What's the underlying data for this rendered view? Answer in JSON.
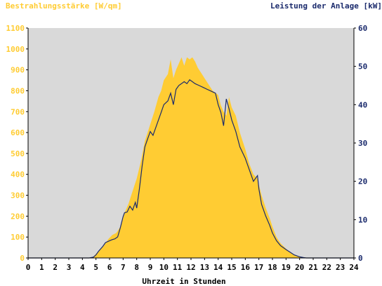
{
  "chart_data": {
    "type": "area",
    "left_axis_title": "Bestrahlungsstärke [W/qm]",
    "right_axis_title": "Leistung der Anlage [kW]",
    "xlabel": "Uhrzeit in Stunden",
    "x_ticks": [
      0,
      1,
      2,
      3,
      4,
      5,
      6,
      7,
      8,
      9,
      10,
      11,
      12,
      13,
      14,
      15,
      16,
      17,
      18,
      19,
      20,
      21,
      22,
      23,
      24
    ],
    "left_ticks": [
      0,
      100,
      200,
      300,
      400,
      500,
      600,
      700,
      800,
      900,
      1000,
      1100
    ],
    "right_ticks": [
      0,
      10,
      20,
      30,
      40,
      50,
      60
    ],
    "xlim": [
      0,
      24
    ],
    "ylim_left": [
      0,
      1100
    ],
    "ylim_right": [
      0,
      60
    ],
    "grid": false,
    "colors": {
      "plot_background": "#d9d9d9",
      "irradiance_fill": "#ffcc33",
      "power_line": "#1a2a6c",
      "left_axis_text": "#ffcc33",
      "right_axis_text": "#1a2a6c",
      "bottom_axis_text": "#000000"
    },
    "series": [
      {
        "axis": "left",
        "style": "area",
        "x": [
          0,
          4.5,
          4.8,
          5.0,
          5.3,
          5.6,
          5.9,
          6.2,
          6.5,
          6.8,
          7.0,
          7.2,
          7.4,
          7.6,
          7.8,
          8.0,
          8.3,
          8.6,
          9.0,
          9.3,
          9.6,
          9.8,
          10.0,
          10.3,
          10.5,
          10.7,
          10.9,
          11.1,
          11.3,
          11.5,
          11.7,
          11.9,
          12.1,
          12.3,
          12.5,
          12.8,
          13.0,
          13.3,
          13.6,
          14.0,
          14.2,
          14.4,
          14.6,
          14.8,
          15.0,
          15.3,
          15.6,
          16.0,
          16.3,
          16.6,
          16.9,
          17.0,
          17.2,
          17.5,
          17.8,
          18.0,
          18.3,
          18.6,
          19.0,
          19.3,
          19.6,
          20.0,
          20.3,
          20.5,
          24
        ],
        "y": [
          0,
          0,
          5,
          20,
          40,
          60,
          90,
          110,
          120,
          150,
          200,
          230,
          260,
          300,
          340,
          380,
          460,
          560,
          640,
          700,
          770,
          800,
          850,
          880,
          950,
          860,
          900,
          930,
          960,
          920,
          960,
          950,
          960,
          940,
          910,
          880,
          860,
          830,
          800,
          780,
          730,
          700,
          680,
          770,
          720,
          680,
          600,
          520,
          450,
          400,
          380,
          350,
          300,
          240,
          190,
          150,
          100,
          70,
          45,
          25,
          15,
          5,
          2,
          0,
          0
        ]
      },
      {
        "axis": "right",
        "style": "line",
        "x": [
          0,
          4.5,
          4.8,
          5.0,
          5.2,
          5.5,
          5.7,
          6.0,
          6.2,
          6.4,
          6.6,
          6.8,
          7.0,
          7.1,
          7.3,
          7.5,
          7.7,
          7.9,
          8.0,
          8.2,
          8.4,
          8.6,
          8.8,
          9.0,
          9.2,
          9.5,
          9.8,
          10.0,
          10.3,
          10.5,
          10.7,
          10.9,
          11.1,
          11.3,
          11.5,
          11.7,
          11.9,
          12.1,
          12.3,
          12.6,
          12.9,
          13.2,
          13.5,
          13.8,
          14.0,
          14.2,
          14.4,
          14.6,
          14.8,
          15.0,
          15.3,
          15.6,
          16.0,
          16.3,
          16.6,
          16.9,
          17.0,
          17.2,
          17.5,
          17.8,
          18.0,
          18.3,
          18.6,
          19.0,
          19.3,
          19.6,
          20.0,
          20.3,
          20.5,
          24
        ],
        "y": [
          0,
          0,
          0.2,
          0.8,
          1.8,
          3,
          4,
          4.5,
          4.8,
          5,
          5.5,
          8,
          10.8,
          11.8,
          12,
          13.5,
          12.5,
          14.5,
          13,
          18,
          24,
          29,
          31,
          33,
          32,
          35,
          38,
          40,
          41,
          43,
          40,
          44,
          45,
          45.5,
          46,
          45.5,
          46.5,
          46,
          45.5,
          45,
          44.5,
          44,
          43.5,
          43,
          40,
          38,
          34.5,
          41.5,
          39,
          36,
          33,
          29,
          26,
          23,
          20,
          21.5,
          18,
          14,
          11,
          8.5,
          6.5,
          4.5,
          3.2,
          2.2,
          1.5,
          0.8,
          0.3,
          0.1,
          0,
          0
        ]
      }
    ]
  }
}
